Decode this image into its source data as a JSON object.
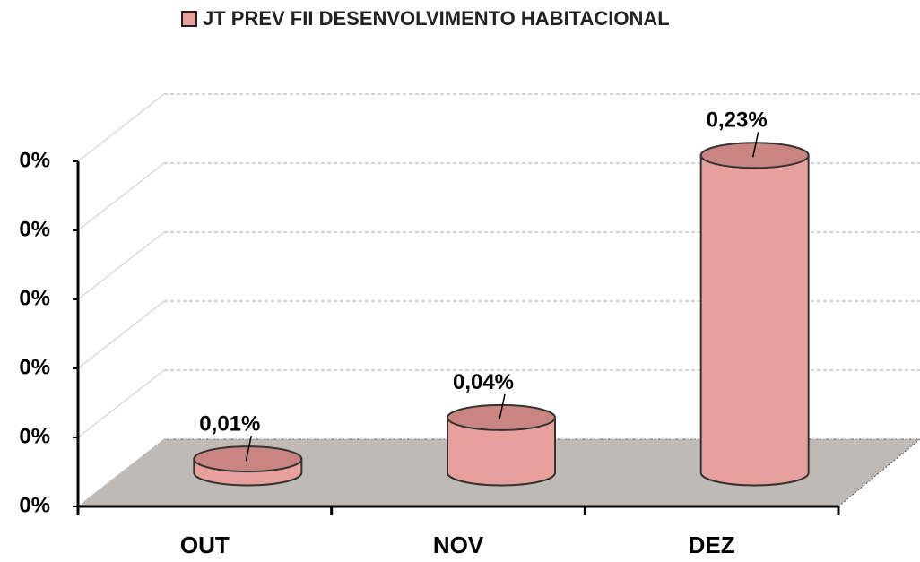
{
  "chart_data": {
    "type": "bar3d",
    "categories": [
      "OUT",
      "NOV",
      "DEZ"
    ],
    "series": [
      {
        "name": "JT PREV FII DESENVOLVIMENTO HABITACIONAL",
        "color": "#e8a09c",
        "values": [
          0.01,
          0.04,
          0.23
        ],
        "value_labels": [
          "0,01%",
          "0,04%",
          "0,23%"
        ]
      }
    ],
    "ylim": [
      0,
      0.25
    ],
    "yticks": [
      {
        "value": 0,
        "label": "0%"
      },
      {
        "value": 0.05,
        "label": "0%"
      },
      {
        "value": 0.1,
        "label": "0%"
      },
      {
        "value": 0.15,
        "label": "0%"
      },
      {
        "value": 0.2,
        "label": "0%"
      },
      {
        "value": 0.25,
        "label": "0%"
      }
    ],
    "grid": true,
    "legend": "top"
  }
}
